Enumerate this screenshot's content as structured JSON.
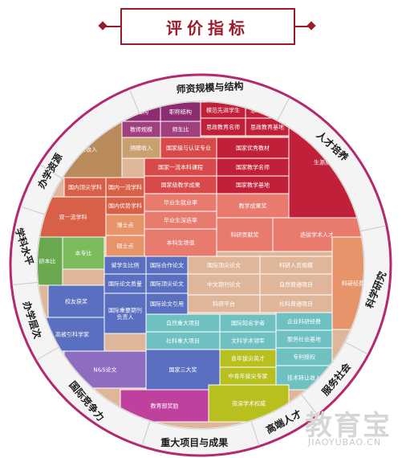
{
  "title": "评价指标",
  "watermark": {
    "brand": "教育宝",
    "url": "JIAOYUBAO.CN"
  },
  "colors": {
    "title": "#9b1b2a",
    "ring_outer": "#b3286e",
    "ring_inner": "#f4f4f4"
  },
  "categories": [
    {
      "key": "faculty",
      "label": "师资规模与结构"
    },
    {
      "key": "talent",
      "label": "人才培养"
    },
    {
      "key": "research",
      "label": "科学研究"
    },
    {
      "key": "service",
      "label": "服务社会"
    },
    {
      "key": "talents",
      "label": "高端人才"
    },
    {
      "key": "projects",
      "label": "重大项目与成果"
    },
    {
      "key": "compete",
      "label": "国际竞争力"
    },
    {
      "key": "level",
      "label": "办学层次"
    },
    {
      "key": "discipline",
      "label": "学科水平"
    },
    {
      "key": "resources",
      "label": "办学资源"
    }
  ],
  "cells": {
    "c01": "学历结构",
    "c02": "职称结构",
    "c03": "模范先进教师",
    "c04": "模范先进学生",
    "c05": "思政教育队伍",
    "c06": "教师规模",
    "c07": "师生比",
    "c08": "思政教育名师",
    "c09": "思政教育基地",
    "c10": "学校收入",
    "c11": "捐赠收入",
    "c12": "国家级与认证专业",
    "c13": "国家优秀教材",
    "c14": "国家一流本科课程",
    "c15": "国家教学名师",
    "c16": "生源质量",
    "c17": "国内顶尖学科",
    "c18": "国内一流学科",
    "c19": "国家级教学成果",
    "c20": "国家教学基地",
    "c21": "双一流学科",
    "c22": "国内优势学科",
    "c23": "毕业生就业率",
    "c24": "教学成果奖",
    "c25": "博士点",
    "c26": "毕业生深造率",
    "c27": "选拔学术人才",
    "c28": "科研贡献奖",
    "c29": "硕士点",
    "c30": "本科生增值",
    "c31": "研本比",
    "c32": "本专比",
    "c33": "留学生比例",
    "c34": "国际合作论文",
    "c35": "国际顶尖论文",
    "c36": "科研人员规模",
    "c37": "国际论文质量",
    "c38": "国际顶尖论文",
    "c39": "中文期刊论文",
    "c40": "自然普通项目",
    "c41": "科研经费",
    "c42": "校友获奖",
    "c43": "国际重要期刊负责人",
    "c44": "国际论文引用",
    "c45": "科研平台",
    "c46": "社科普通项目",
    "c47": "自然重大项目",
    "c48": "国际知名学者",
    "c49": "企业科研经费",
    "c50": "高被引科学家",
    "c51": "社科重大项目",
    "c52": "文科学术领军",
    "c53": "服务社会基地",
    "c54": "青年拔尖英才",
    "c55": "专利授权",
    "c56": "N&S论文",
    "c57": "国家三大奖",
    "c58": "中青年拔尖专家",
    "c59": "技术转让收入",
    "c60": "教育部奖励",
    "c61": "资深学术权威"
  }
}
